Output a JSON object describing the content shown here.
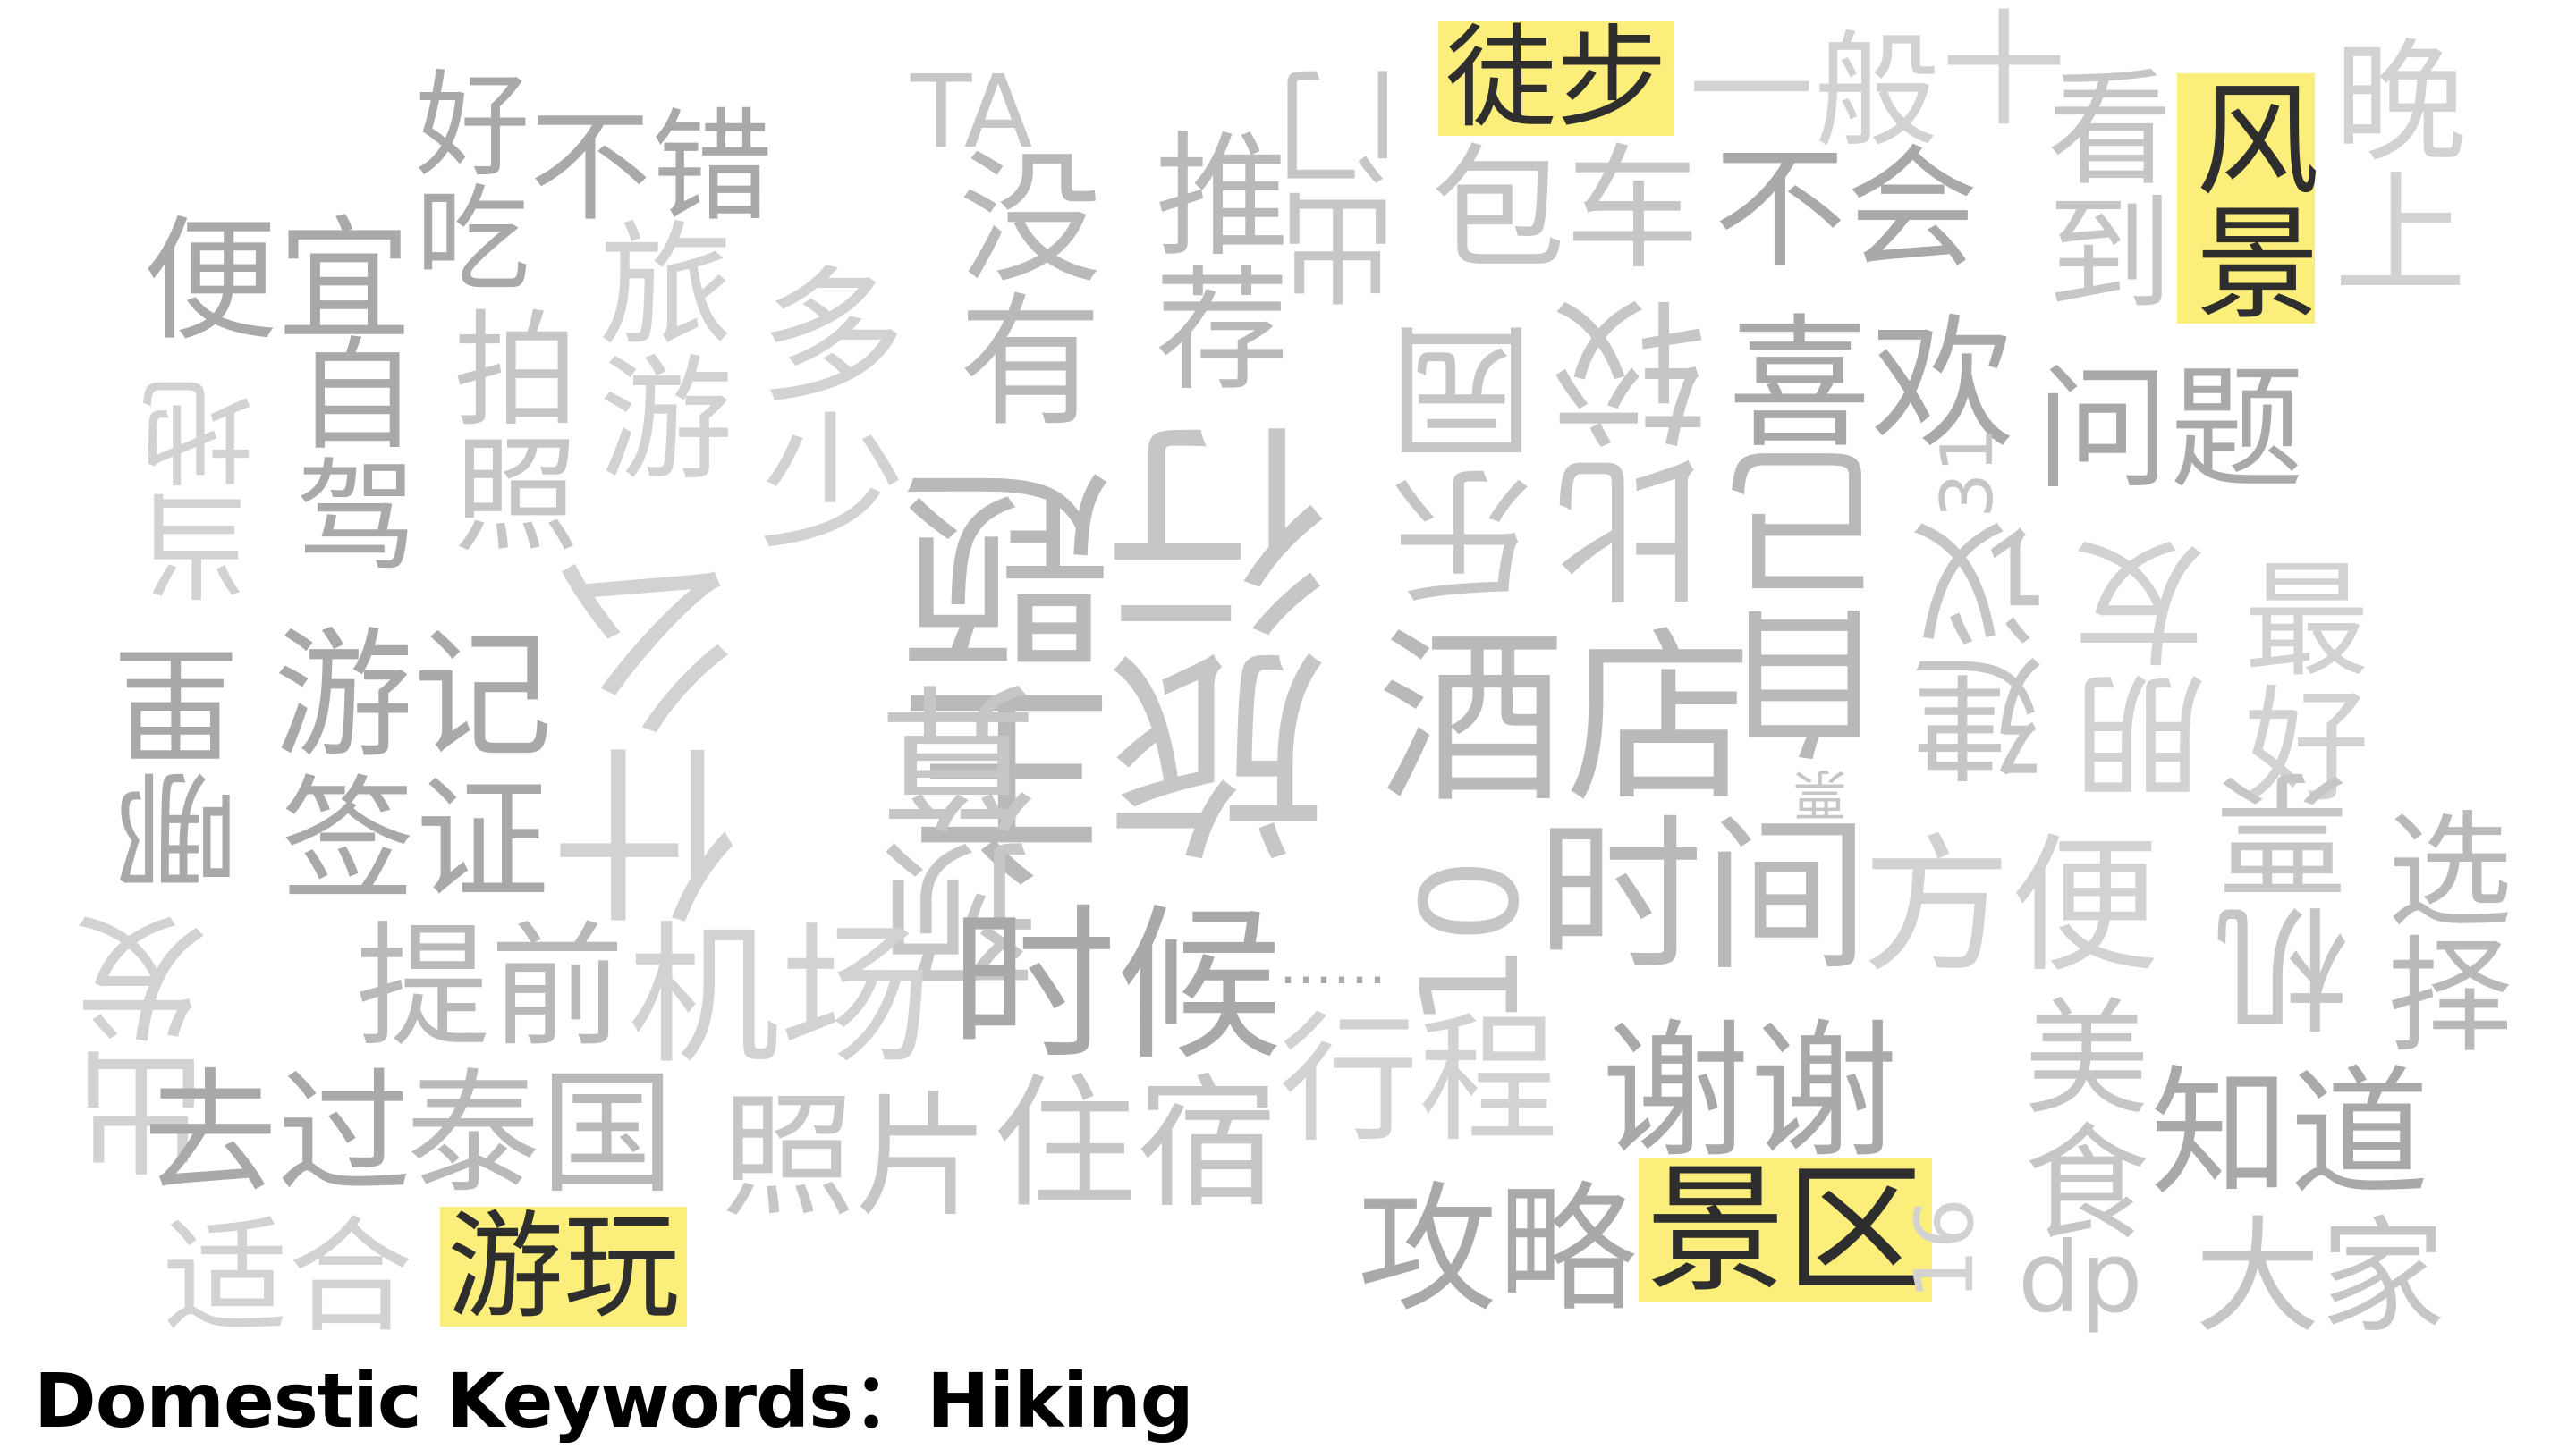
{
  "footer": {
    "title": "Domestic Keywords：Hiking"
  },
  "cloud": {
    "highlights": [
      "徒步",
      "风景",
      "景区",
      "游玩"
    ],
    "words": [
      "好吃",
      "不错",
      "TA",
      "便宜",
      "当地",
      "自驾",
      "拍照",
      "旅游",
      "多少",
      "没有",
      "推荐",
      "出门",
      "包车",
      "一般",
      "十",
      "看到",
      "晚上",
      "不会",
      "比较",
      "喜欢",
      "问题",
      "乐园",
      "自己",
      "31",
      "建议",
      "朋友",
      "最好",
      "主题",
      "旅行",
      "酒店",
      "预算",
      "哪里",
      "游记",
      "签证",
      "什么",
      "票",
      "10",
      "时间",
      "方便",
      "机票",
      "选择",
      "出发",
      "提前",
      "机场",
      "时候",
      "……",
      "行程",
      "谢谢",
      "美食",
      "知道",
      "去过",
      "泰国",
      "照片",
      "住宿",
      "攻略",
      "适合",
      "大家",
      "dp",
      "16"
    ]
  }
}
